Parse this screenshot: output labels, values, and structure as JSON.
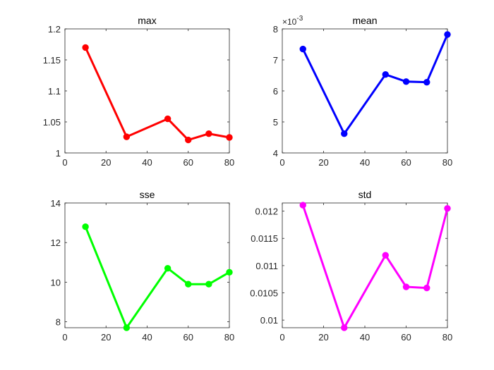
{
  "chart_data": [
    {
      "type": "line",
      "title": "max",
      "x": [
        10,
        30,
        50,
        60,
        70,
        80
      ],
      "series": [
        {
          "name": "max",
          "values": [
            1.17,
            1.026,
            1.055,
            1.021,
            1.031,
            1.025
          ]
        }
      ],
      "color": "#ff0000",
      "xlim": [
        0,
        80
      ],
      "ylim": [
        1,
        1.2
      ],
      "xticks": [
        "0",
        "20",
        "40",
        "60",
        "80"
      ],
      "yticks": [
        "1",
        "1.05",
        "1.1",
        "1.15",
        "1.2"
      ],
      "exponent": "",
      "xlabel": "",
      "ylabel": ""
    },
    {
      "type": "line",
      "title": "mean",
      "x": [
        10,
        30,
        50,
        60,
        70,
        80
      ],
      "series": [
        {
          "name": "mean",
          "values": [
            7.35,
            4.62,
            6.53,
            6.3,
            6.28,
            7.82
          ]
        }
      ],
      "color": "#0000ff",
      "xlim": [
        0,
        80
      ],
      "ylim": [
        4,
        8
      ],
      "xticks": [
        "0",
        "20",
        "40",
        "60",
        "80"
      ],
      "yticks": [
        "4",
        "5",
        "6",
        "7",
        "8"
      ],
      "exponent": "×10",
      "exponent_power": "-3",
      "xlabel": "",
      "ylabel": ""
    },
    {
      "type": "line",
      "title": "sse",
      "x": [
        10,
        30,
        50,
        60,
        70,
        80
      ],
      "series": [
        {
          "name": "sse",
          "values": [
            12.8,
            7.7,
            10.7,
            9.9,
            9.9,
            10.5
          ]
        }
      ],
      "color": "#00ff00",
      "xlim": [
        0,
        80
      ],
      "ylim": [
        7.7,
        14
      ],
      "xticks": [
        "0",
        "20",
        "40",
        "60",
        "80"
      ],
      "yticks": [
        "8",
        "10",
        "12",
        "14"
      ],
      "exponent": "",
      "xlabel": "",
      "ylabel": ""
    },
    {
      "type": "line",
      "title": "std",
      "x": [
        10,
        30,
        50,
        60,
        70,
        80
      ],
      "series": [
        {
          "name": "std",
          "values": [
            0.01211,
            0.00986,
            0.01119,
            0.01061,
            0.01059,
            0.01205
          ]
        }
      ],
      "color": "#ff00ff",
      "xlim": [
        0,
        80
      ],
      "ylim": [
        0.00986,
        0.01215
      ],
      "xticks": [
        "0",
        "20",
        "40",
        "60",
        "80"
      ],
      "yticks": [
        "0.01",
        "0.0105",
        "0.011",
        "0.0115",
        "0.012"
      ],
      "exponent": "",
      "xlabel": "",
      "ylabel": ""
    }
  ]
}
